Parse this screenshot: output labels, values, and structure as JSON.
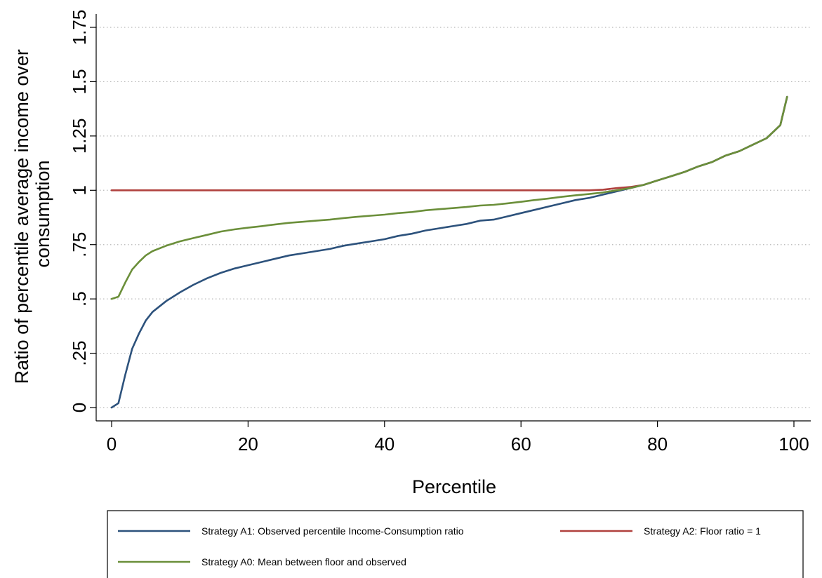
{
  "chart_data": {
    "type": "line",
    "xlabel": "Percentile",
    "ylabel": "Ratio of percentile average income over consumption",
    "xlim": [
      0,
      100
    ],
    "ylim": [
      0,
      1.75
    ],
    "x_ticks": [
      "0",
      "20",
      "40",
      "60",
      "80",
      "100"
    ],
    "y_ticks": [
      "0",
      ".25",
      ".5",
      ".75",
      "1",
      "1.25",
      "1.5",
      "1.75"
    ],
    "grid": "horizontal-dotted",
    "legend_position": "bottom",
    "series": [
      {
        "name": "Strategy A1: Observed percentile Income-Consumption ratio",
        "color": "#2d527c",
        "x": [
          0,
          1,
          2,
          3,
          4,
          5,
          6,
          8,
          10,
          12,
          14,
          16,
          18,
          20,
          22,
          24,
          26,
          28,
          30,
          32,
          34,
          36,
          38,
          40,
          42,
          44,
          46,
          48,
          50,
          52,
          54,
          56,
          58,
          60,
          62,
          64,
          66,
          68,
          70,
          72,
          74,
          76,
          78,
          80,
          82,
          84,
          86,
          88,
          90,
          92,
          94,
          96,
          98,
          99
        ],
        "values": [
          0.0,
          0.02,
          0.15,
          0.27,
          0.34,
          0.4,
          0.44,
          0.49,
          0.53,
          0.565,
          0.595,
          0.62,
          0.64,
          0.655,
          0.67,
          0.685,
          0.7,
          0.71,
          0.72,
          0.73,
          0.745,
          0.755,
          0.765,
          0.775,
          0.79,
          0.8,
          0.815,
          0.825,
          0.835,
          0.845,
          0.86,
          0.865,
          0.88,
          0.895,
          0.91,
          0.925,
          0.94,
          0.955,
          0.965,
          0.98,
          0.995,
          1.01,
          1.025,
          1.045,
          1.065,
          1.085,
          1.11,
          1.13,
          1.16,
          1.18,
          1.21,
          1.24,
          1.3,
          1.43
        ]
      },
      {
        "name": "Strategy A2: Floor ratio = 1",
        "color": "#b0413e",
        "x": [
          0,
          10,
          20,
          30,
          40,
          50,
          60,
          70,
          72,
          74,
          76,
          78,
          80,
          82,
          84,
          86,
          88,
          90,
          92,
          94,
          96,
          98,
          99
        ],
        "values": [
          1,
          1,
          1,
          1,
          1,
          1,
          1,
          1,
          1.003,
          1.01,
          1.015,
          1.025,
          1.045,
          1.065,
          1.085,
          1.11,
          1.13,
          1.16,
          1.18,
          1.21,
          1.24,
          1.3,
          1.43
        ]
      },
      {
        "name": "Strategy A0: Mean between floor and observed",
        "color": "#6b8f3a",
        "x": [
          0,
          1,
          2,
          3,
          4,
          5,
          6,
          8,
          10,
          12,
          14,
          16,
          18,
          20,
          22,
          24,
          26,
          28,
          30,
          32,
          34,
          36,
          38,
          40,
          42,
          44,
          46,
          48,
          50,
          52,
          54,
          56,
          58,
          60,
          62,
          64,
          66,
          68,
          70,
          72,
          74,
          76,
          78,
          80,
          82,
          84,
          86,
          88,
          90,
          92,
          94,
          96,
          98,
          99
        ],
        "values": [
          0.5,
          0.51,
          0.575,
          0.635,
          0.67,
          0.7,
          0.72,
          0.745,
          0.765,
          0.78,
          0.795,
          0.81,
          0.82,
          0.828,
          0.835,
          0.843,
          0.85,
          0.855,
          0.86,
          0.865,
          0.872,
          0.878,
          0.883,
          0.888,
          0.895,
          0.9,
          0.908,
          0.913,
          0.918,
          0.923,
          0.93,
          0.933,
          0.94,
          0.947,
          0.955,
          0.962,
          0.97,
          0.977,
          0.983,
          0.99,
          1.0,
          1.01,
          1.025,
          1.045,
          1.065,
          1.085,
          1.11,
          1.13,
          1.16,
          1.18,
          1.21,
          1.24,
          1.3,
          1.43
        ]
      }
    ],
    "legend_rows": [
      [
        "Strategy A1: Observed percentile Income-Consumption ratio",
        "Strategy A2: Floor ratio = 1"
      ],
      [
        "Strategy A0: Mean between floor and observed"
      ]
    ]
  }
}
